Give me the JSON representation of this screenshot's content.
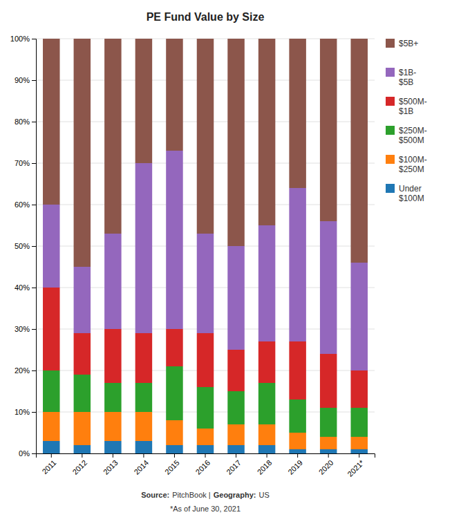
{
  "chart_data": {
    "type": "bar",
    "stacked": true,
    "title": "PE Fund Value by Size",
    "categories": [
      "2011",
      "2012",
      "2013",
      "2014",
      "2015",
      "2016",
      "2017",
      "2018",
      "2019",
      "2020",
      "2021*"
    ],
    "series": [
      {
        "name": "Under\n$100M",
        "values": [
          3,
          2,
          3,
          3,
          2,
          2,
          2,
          2,
          1,
          1,
          1
        ]
      },
      {
        "name": "$100M-\n$250M",
        "values": [
          7,
          8,
          7,
          7,
          6,
          4,
          5,
          5,
          4,
          3,
          3
        ]
      },
      {
        "name": "$250M-\n$500M",
        "values": [
          10,
          9,
          7,
          7,
          13,
          10,
          8,
          10,
          8,
          7,
          7
        ]
      },
      {
        "name": "$500M-\n$1B",
        "values": [
          20,
          10,
          13,
          12,
          9,
          13,
          10,
          10,
          14,
          13,
          9
        ]
      },
      {
        "name": "$1B-\n$5B",
        "values": [
          20,
          16,
          23,
          41,
          43,
          24,
          25,
          28,
          37,
          32,
          26
        ]
      },
      {
        "name": "$5B+",
        "values": [
          40,
          55,
          47,
          30,
          27,
          47,
          50,
          45,
          36,
          44,
          54
        ]
      }
    ],
    "ylim": [
      0,
      100
    ],
    "yticks": [
      {
        "value": 0,
        "label": "0%"
      },
      {
        "value": 10,
        "label": "10%"
      },
      {
        "value": 20,
        "label": "20%"
      },
      {
        "value": 30,
        "label": "30%"
      },
      {
        "value": 40,
        "label": "40%"
      },
      {
        "value": 50,
        "label": "50%"
      },
      {
        "value": 60,
        "label": "60%"
      },
      {
        "value": 70,
        "label": "70%"
      },
      {
        "value": 80,
        "label": "80%"
      },
      {
        "value": 90,
        "label": "90%"
      },
      {
        "value": 100,
        "label": "100%"
      }
    ],
    "grid": true,
    "legend": "right",
    "annotations": [
      [
        "Source:",
        "PitchBook |",
        "Geography:",
        "US"
      ],
      [
        "*As of June 30, 2021"
      ]
    ]
  }
}
